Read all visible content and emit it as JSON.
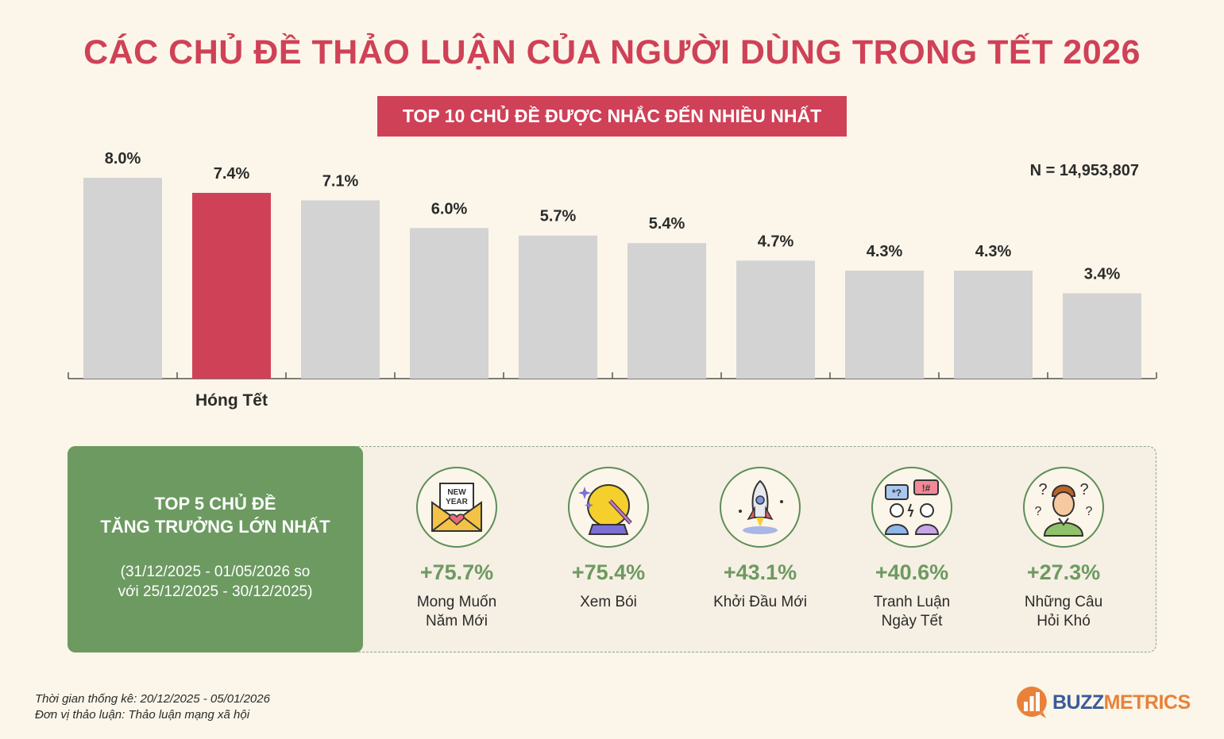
{
  "title": "CÁC CHỦ ĐỀ THẢO LUẬN CỦA NGƯỜI DÙNG TRONG TẾT 2026",
  "subtitle": "TOP 10 CHỦ ĐỀ ĐƯỢC NHẮC ĐẾN NHIỀU NHẤT",
  "sample_size": "N = 14,953,807",
  "chart_data": {
    "type": "bar",
    "title": "TOP 10 CHỦ ĐỀ ĐƯỢC NHẮC ĐẾN NHIỀU NHẤT",
    "categories": [
      "",
      "Hóng Tết",
      "",
      "",
      "",
      "",
      "",
      "",
      "",
      ""
    ],
    "values": [
      8.0,
      7.4,
      7.1,
      6.0,
      5.7,
      5.4,
      4.7,
      4.3,
      4.3,
      3.4
    ],
    "value_labels": [
      "8.0%",
      "7.4%",
      "7.1%",
      "6.0%",
      "5.7%",
      "5.4%",
      "4.7%",
      "4.3%",
      "4.3%",
      "3.4%"
    ],
    "highlight_index": 1,
    "colors": {
      "default": "#d3d3d3",
      "highlight": "#cf4157"
    },
    "ylim": [
      0,
      8
    ],
    "grid": false,
    "legend": "none"
  },
  "growth": {
    "heading_line1": "TOP 5 CHỦ ĐỀ",
    "heading_line2": "TĂNG TRƯỞNG LỚN NHẤT",
    "period_line1": "(31/12/2025 - 01/05/2026 so",
    "period_line2": "với 25/12/2025 - 30/12/2025)",
    "items": [
      {
        "icon": "new-year-envelope-icon",
        "icon_text_1": "NEW",
        "icon_text_2": "YEAR",
        "value": "+75.7%",
        "label_1": "Mong Muốn",
        "label_2": "Năm Mới"
      },
      {
        "icon": "crystal-ball-icon",
        "value": "+75.4%",
        "label_1": "Xem Bói",
        "label_2": ""
      },
      {
        "icon": "rocket-icon",
        "value": "+43.1%",
        "label_1": "Khởi Đầu Mới",
        "label_2": ""
      },
      {
        "icon": "debate-icon",
        "icon_text_1": "*?",
        "icon_text_2": "!#",
        "value": "+40.6%",
        "label_1": "Tranh Luận",
        "label_2": "Ngày Tết"
      },
      {
        "icon": "question-person-icon",
        "value": "+27.3%",
        "label_1": "Những Câu",
        "label_2": "Hỏi Khó"
      }
    ],
    "accent": "#6c9a61"
  },
  "footnotes": {
    "period": "Thời gian thống kê: 20/12/2025 - 05/01/2026",
    "unit": "Đơn vị thảo luận: Thảo luận mạng xã hội"
  },
  "logo": {
    "part1": "BUZZ",
    "part2": "METRICS",
    "color1": "#3b5a9a",
    "color2": "#e8823a"
  }
}
